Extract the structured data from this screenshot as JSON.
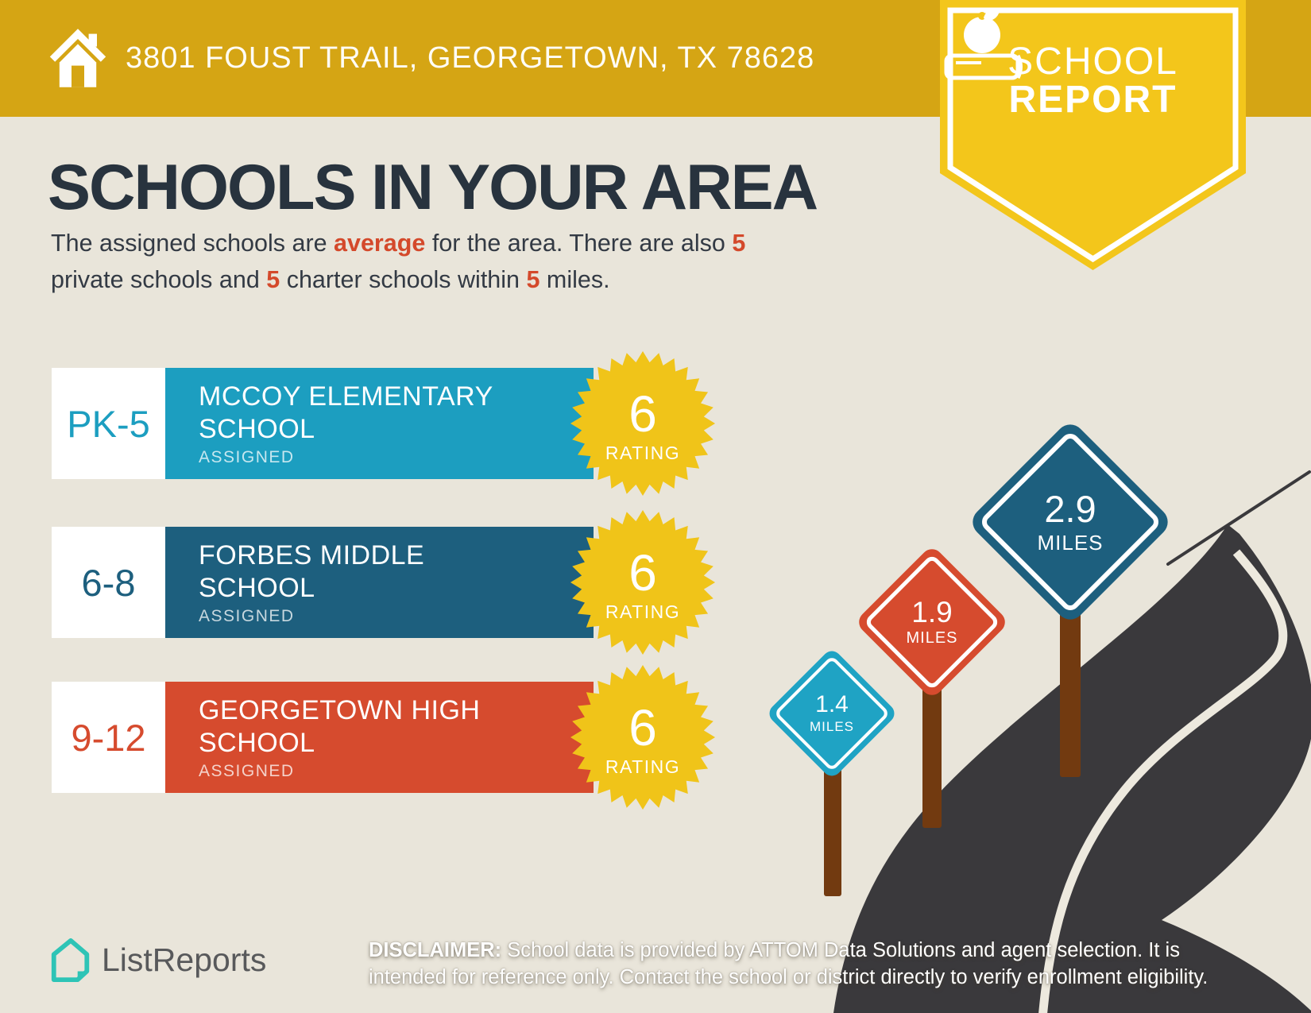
{
  "banner": {
    "address": "3801 FOUST TRAIL, GEORGETOWN, TX 78628"
  },
  "badge": {
    "line1": "SCHOOL",
    "line2": "REPORT"
  },
  "title": "SCHOOLS IN YOUR AREA",
  "subtitle_segments": [
    {
      "text": "The assigned schools are ",
      "style": "normal"
    },
    {
      "text": "average",
      "style": "em"
    },
    {
      "text": " for the area. There are also ",
      "style": "normal"
    },
    {
      "text": "5",
      "style": "em"
    },
    {
      "style": "br"
    },
    {
      "text": "private schools and ",
      "style": "normal"
    },
    {
      "text": "5",
      "style": "em"
    },
    {
      "text": " charter schools within ",
      "style": "normal"
    },
    {
      "text": "5",
      "style": "em"
    },
    {
      "text": " miles.",
      "style": "normal"
    }
  ],
  "labels": {
    "rating": "RATING",
    "assigned": "ASSIGNED"
  },
  "schools": [
    {
      "grades": "PK-5",
      "name": "MCCOY ELEMENTARY SCHOOL",
      "status": "ASSIGNED",
      "rating": "6",
      "color": "#1C9EC0"
    },
    {
      "grades": "6-8",
      "name": "FORBES MIDDLE SCHOOL",
      "status": "ASSIGNED",
      "rating": "6",
      "color": "#1D5F7E"
    },
    {
      "grades": "9-12",
      "name": "GEORGETOWN HIGH SCHOOL",
      "status": "ASSIGNED",
      "rating": "6",
      "color": "#D64B2E"
    }
  ],
  "signs": [
    {
      "value": "1.4",
      "unit": "MILES",
      "color": "#1FA3C4"
    },
    {
      "value": "1.9",
      "unit": "MILES",
      "color": "#D64B2E"
    },
    {
      "value": "2.9",
      "unit": "MILES",
      "color": "#1D5F7E"
    }
  ],
  "footer": {
    "brand": "ListReports",
    "disclaimer_label": "DISCLAIMER:",
    "disclaimer_text": " School data is provided by ATTOM Data Solutions and agent selection. It is intended for reference only. Contact the school or district directly to verify enrollment eligibility."
  },
  "colors": {
    "banner": "#D5A514",
    "badge": "#F3C61B",
    "background": "#E9E5DA",
    "title": "#28333E",
    "accent": "#D4492B",
    "starburst": "#F0C419",
    "road": "#3A393C",
    "road_stripe": "#EDE9DE",
    "post": "#723A10",
    "logo_teal": "#2EC4B6",
    "logo_text": "#58595B",
    "white": "#FFFFFF"
  }
}
